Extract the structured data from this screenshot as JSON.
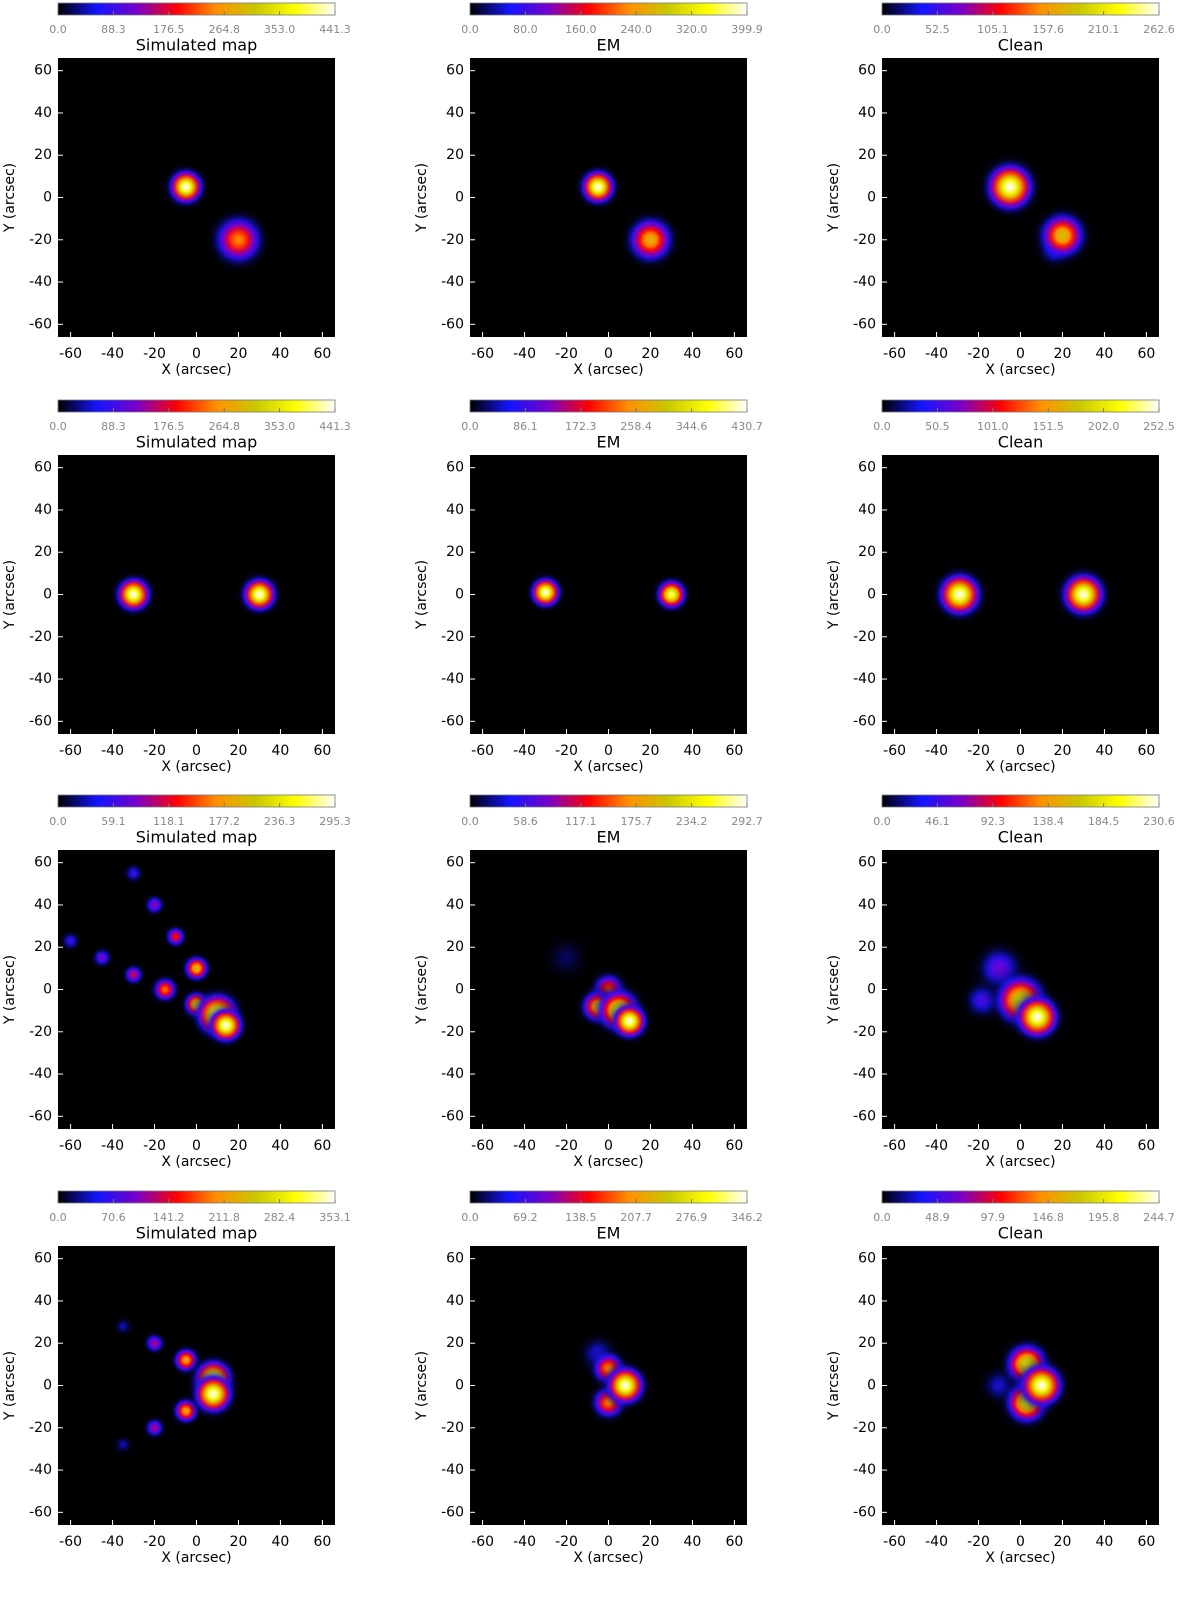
{
  "colormap": [
    "#000000",
    "#1414ff",
    "#7a00c8",
    "#ff0000",
    "#ff9000",
    "#c8c800",
    "#ffff00",
    "#ffffff"
  ],
  "chart_data": [
    {
      "type": "heatmap",
      "title": "Simulated map",
      "xlabel": "X (arcsec)",
      "ylabel": "Y (arcsec)",
      "xlim": [
        -66,
        66
      ],
      "ylim": [
        -66,
        66
      ],
      "xticks": [
        -60,
        -40,
        -20,
        0,
        20,
        40,
        60
      ],
      "yticks": [
        -60,
        -40,
        -20,
        0,
        20,
        40,
        60
      ],
      "clim": [
        0,
        441.3
      ],
      "cticks": [
        {
          "value": 0,
          "label": "0.0"
        },
        88.3,
        176.5,
        264.8,
        {
          "value": 353,
          "label": "353.0"
        },
        441.3
      ],
      "sources": [
        {
          "x": 20,
          "y": -20,
          "peak": 250,
          "width": 6
        },
        {
          "x": -5,
          "y": 5,
          "peak": 441,
          "width": 4
        }
      ]
    },
    {
      "type": "heatmap",
      "title": "EM",
      "xlabel": "X (arcsec)",
      "ylabel": "Y (arcsec)",
      "xlim": [
        -66,
        66
      ],
      "ylim": [
        -66,
        66
      ],
      "xticks": [
        -60,
        -40,
        -20,
        0,
        20,
        40,
        60
      ],
      "yticks": [
        -60,
        -40,
        -20,
        0,
        20,
        40,
        60
      ],
      "clim": [
        0,
        399.9
      ],
      "cticks": [
        {
          "value": 0,
          "label": "0.0"
        },
        {
          "value": 80,
          "label": "80.0"
        },
        {
          "value": 160,
          "label": "160.0"
        },
        {
          "value": 240,
          "label": "240.0"
        },
        {
          "value": 320,
          "label": "320.0"
        },
        399.9
      ],
      "sources": [
        {
          "x": 20,
          "y": -20,
          "peak": 260,
          "width": 5.5
        },
        {
          "x": -5,
          "y": 5,
          "peak": 399,
          "width": 4
        }
      ]
    },
    {
      "type": "heatmap",
      "title": "Clean",
      "xlabel": "X (arcsec)",
      "ylabel": "Y (arcsec)",
      "xlim": [
        -66,
        66
      ],
      "ylim": [
        -66,
        66
      ],
      "xticks": [
        -60,
        -40,
        -20,
        0,
        20,
        40,
        60
      ],
      "yticks": [
        -60,
        -40,
        -20,
        0,
        20,
        40,
        60
      ],
      "clim": [
        0,
        262.6
      ],
      "cticks": [
        {
          "value": 0,
          "label": "0.0"
        },
        52.5,
        105.1,
        157.6,
        210.1,
        262.6
      ],
      "sources": [
        {
          "x": 16,
          "y": -25,
          "peak": 60,
          "width": 4
        },
        {
          "x": 20,
          "y": -18,
          "peak": 180,
          "width": 5.5
        },
        {
          "x": -5,
          "y": 5,
          "peak": 262,
          "width": 5.5
        }
      ]
    },
    {
      "type": "heatmap",
      "title": "Simulated map",
      "xlabel": "X (arcsec)",
      "ylabel": "Y (arcsec)",
      "xlim": [
        -66,
        66
      ],
      "ylim": [
        -66,
        66
      ],
      "xticks": [
        -60,
        -40,
        -20,
        0,
        20,
        40,
        60
      ],
      "yticks": [
        -60,
        -40,
        -20,
        0,
        20,
        40,
        60
      ],
      "clim": [
        0,
        441.3
      ],
      "cticks": [
        {
          "value": 0,
          "label": "0.0"
        },
        88.3,
        176.5,
        264.8,
        {
          "value": 353,
          "label": "353.0"
        },
        441.3
      ],
      "sources": [
        {
          "x": -30,
          "y": 0,
          "peak": 441,
          "width": 4
        },
        {
          "x": 30,
          "y": 0,
          "peak": 441,
          "width": 4
        }
      ]
    },
    {
      "type": "heatmap",
      "title": "EM",
      "xlabel": "X (arcsec)",
      "ylabel": "Y (arcsec)",
      "xlim": [
        -66,
        66
      ],
      "ylim": [
        -66,
        66
      ],
      "xticks": [
        -60,
        -40,
        -20,
        0,
        20,
        40,
        60
      ],
      "yticks": [
        -60,
        -40,
        -20,
        0,
        20,
        40,
        60
      ],
      "clim": [
        0,
        430.7
      ],
      "cticks": [
        {
          "value": 0,
          "label": "0.0"
        },
        86.1,
        172.3,
        258.4,
        344.6,
        430.7
      ],
      "sources": [
        {
          "x": -30,
          "y": 1,
          "peak": 430,
          "width": 3.5
        },
        {
          "x": 30,
          "y": 0,
          "peak": 400,
          "width": 3.5
        }
      ]
    },
    {
      "type": "heatmap",
      "title": "Clean",
      "xlabel": "X (arcsec)",
      "ylabel": "Y (arcsec)",
      "xlim": [
        -66,
        66
      ],
      "ylim": [
        -66,
        66
      ],
      "xticks": [
        -60,
        -40,
        -20,
        0,
        20,
        40,
        60
      ],
      "yticks": [
        -60,
        -40,
        -20,
        0,
        20,
        40,
        60
      ],
      "clim": [
        0,
        252.5
      ],
      "cticks": [
        {
          "value": 0,
          "label": "0.0"
        },
        50.5,
        {
          "value": 101,
          "label": "101.0"
        },
        151.5,
        {
          "value": 202,
          "label": "202.0"
        },
        252.5
      ],
      "sources": [
        {
          "x": -29,
          "y": 0,
          "peak": 252,
          "width": 5
        },
        {
          "x": 30,
          "y": 0,
          "peak": 252,
          "width": 5
        }
      ]
    },
    {
      "type": "heatmap",
      "title": "Simulated map",
      "xlabel": "X (arcsec)",
      "ylabel": "Y (arcsec)",
      "xlim": [
        -66,
        66
      ],
      "ylim": [
        -66,
        66
      ],
      "xticks": [
        -60,
        -40,
        -20,
        0,
        20,
        40,
        60
      ],
      "yticks": [
        -60,
        -40,
        -20,
        0,
        20,
        40,
        60
      ],
      "clim": [
        0,
        295.3
      ],
      "cticks": [
        {
          "value": 0,
          "label": "0.0"
        },
        59.1,
        118.1,
        177.2,
        236.3,
        295.3
      ],
      "sources": [
        {
          "x": -60,
          "y": 23,
          "peak": 60,
          "width": 2.5
        },
        {
          "x": -45,
          "y": 15,
          "peak": 80,
          "width": 2.5
        },
        {
          "x": -30,
          "y": 55,
          "peak": 60,
          "width": 2.5
        },
        {
          "x": -20,
          "y": 40,
          "peak": 90,
          "width": 2.5
        },
        {
          "x": -30,
          "y": 7,
          "peak": 110,
          "width": 2.5
        },
        {
          "x": -10,
          "y": 25,
          "peak": 130,
          "width": 2.5
        },
        {
          "x": -15,
          "y": 0,
          "peak": 160,
          "width": 3
        },
        {
          "x": 0,
          "y": 10,
          "peak": 200,
          "width": 3
        },
        {
          "x": 0,
          "y": -7,
          "peak": 220,
          "width": 3
        },
        {
          "x": 10,
          "y": -12,
          "peak": 295,
          "width": 5
        },
        {
          "x": 14,
          "y": -17,
          "peak": 295,
          "width": 4
        }
      ]
    },
    {
      "type": "heatmap",
      "title": "EM",
      "xlabel": "X (arcsec)",
      "ylabel": "Y (arcsec)",
      "xlim": [
        -66,
        66
      ],
      "ylim": [
        -66,
        66
      ],
      "xticks": [
        -60,
        -40,
        -20,
        0,
        20,
        40,
        60
      ],
      "yticks": [
        -60,
        -40,
        -20,
        0,
        20,
        40,
        60
      ],
      "clim": [
        0,
        292.7
      ],
      "cticks": [
        {
          "value": 0,
          "label": "0.0"
        },
        58.6,
        117.1,
        175.7,
        234.2,
        292.7
      ],
      "sources": [
        {
          "x": -20,
          "y": 15,
          "peak": 30,
          "width": 6
        },
        {
          "x": 0,
          "y": 0,
          "peak": 150,
          "width": 4
        },
        {
          "x": -5,
          "y": -8,
          "peak": 200,
          "width": 4
        },
        {
          "x": 5,
          "y": -10,
          "peak": 260,
          "width": 5
        },
        {
          "x": 10,
          "y": -15,
          "peak": 292,
          "width": 4
        }
      ]
    },
    {
      "type": "heatmap",
      "title": "Clean",
      "xlabel": "X (arcsec)",
      "ylabel": "Y (arcsec)",
      "xlim": [
        -66,
        66
      ],
      "ylim": [
        -66,
        66
      ],
      "xticks": [
        -60,
        -40,
        -20,
        0,
        20,
        40,
        60
      ],
      "yticks": [
        -60,
        -40,
        -20,
        0,
        20,
        40,
        60
      ],
      "clim": [
        0,
        230.6
      ],
      "cticks": [
        {
          "value": 0,
          "label": "0.0"
        },
        46.1,
        92.3,
        138.4,
        184.5,
        230.6
      ],
      "sources": [
        {
          "x": -18,
          "y": -5,
          "peak": 50,
          "width": 5
        },
        {
          "x": -10,
          "y": 10,
          "peak": 60,
          "width": 6
        },
        {
          "x": 0,
          "y": -5,
          "peak": 180,
          "width": 6
        },
        {
          "x": 8,
          "y": -13,
          "peak": 230,
          "width": 5
        }
      ]
    },
    {
      "type": "heatmap",
      "title": "Simulated map",
      "xlabel": "X (arcsec)",
      "ylabel": "Y (arcsec)",
      "xlim": [
        -66,
        66
      ],
      "ylim": [
        -66,
        66
      ],
      "xticks": [
        -60,
        -40,
        -20,
        0,
        20,
        40,
        60
      ],
      "yticks": [
        -60,
        -40,
        -20,
        0,
        20,
        40,
        60
      ],
      "clim": [
        0,
        353.1
      ],
      "cticks": [
        {
          "value": 0,
          "label": "0.0"
        },
        70.6,
        141.2,
        211.8,
        282.4,
        353.1
      ],
      "sources": [
        {
          "x": -35,
          "y": 28,
          "peak": 50,
          "width": 2.5
        },
        {
          "x": -35,
          "y": -28,
          "peak": 50,
          "width": 2.5
        },
        {
          "x": -20,
          "y": 20,
          "peak": 120,
          "width": 2.5
        },
        {
          "x": -20,
          "y": -20,
          "peak": 120,
          "width": 2.5
        },
        {
          "x": -5,
          "y": 12,
          "peak": 220,
          "width": 3
        },
        {
          "x": -5,
          "y": -12,
          "peak": 220,
          "width": 3
        },
        {
          "x": 8,
          "y": 3,
          "peak": 353,
          "width": 4.5
        },
        {
          "x": 8,
          "y": -4,
          "peak": 353,
          "width": 4.5
        }
      ]
    },
    {
      "type": "heatmap",
      "title": "EM",
      "xlabel": "X (arcsec)",
      "ylabel": "Y (arcsec)",
      "xlim": [
        -66,
        66
      ],
      "ylim": [
        -66,
        66
      ],
      "xticks": [
        -60,
        -40,
        -20,
        0,
        20,
        40,
        60
      ],
      "yticks": [
        -60,
        -40,
        -20,
        0,
        20,
        40,
        60
      ],
      "clim": [
        0,
        346.2
      ],
      "cticks": [
        {
          "value": 0,
          "label": "0.0"
        },
        69.2,
        138.5,
        207.7,
        276.9,
        346.2
      ],
      "sources": [
        {
          "x": -5,
          "y": 15,
          "peak": 60,
          "width": 5
        },
        {
          "x": 0,
          "y": 8,
          "peak": 200,
          "width": 4
        },
        {
          "x": 0,
          "y": -8,
          "peak": 200,
          "width": 4
        },
        {
          "x": 8,
          "y": 0,
          "peak": 346,
          "width": 4.5
        }
      ]
    },
    {
      "type": "heatmap",
      "title": "Clean",
      "xlabel": "X (arcsec)",
      "ylabel": "Y (arcsec)",
      "xlim": [
        -66,
        66
      ],
      "ylim": [
        -66,
        66
      ],
      "xticks": [
        -60,
        -40,
        -20,
        0,
        20,
        40,
        60
      ],
      "yticks": [
        -60,
        -40,
        -20,
        0,
        20,
        40,
        60
      ],
      "clim": [
        0,
        244.7
      ],
      "cticks": [
        {
          "value": 0,
          "label": "0.0"
        },
        48.9,
        97.9,
        146.8,
        195.8,
        244.7
      ],
      "sources": [
        {
          "x": -10,
          "y": 0,
          "peak": 40,
          "width": 5
        },
        {
          "x": 3,
          "y": 10,
          "peak": 200,
          "width": 5
        },
        {
          "x": 3,
          "y": -8,
          "peak": 200,
          "width": 5
        },
        {
          "x": 10,
          "y": 0,
          "peak": 244,
          "width": 5
        }
      ]
    }
  ]
}
